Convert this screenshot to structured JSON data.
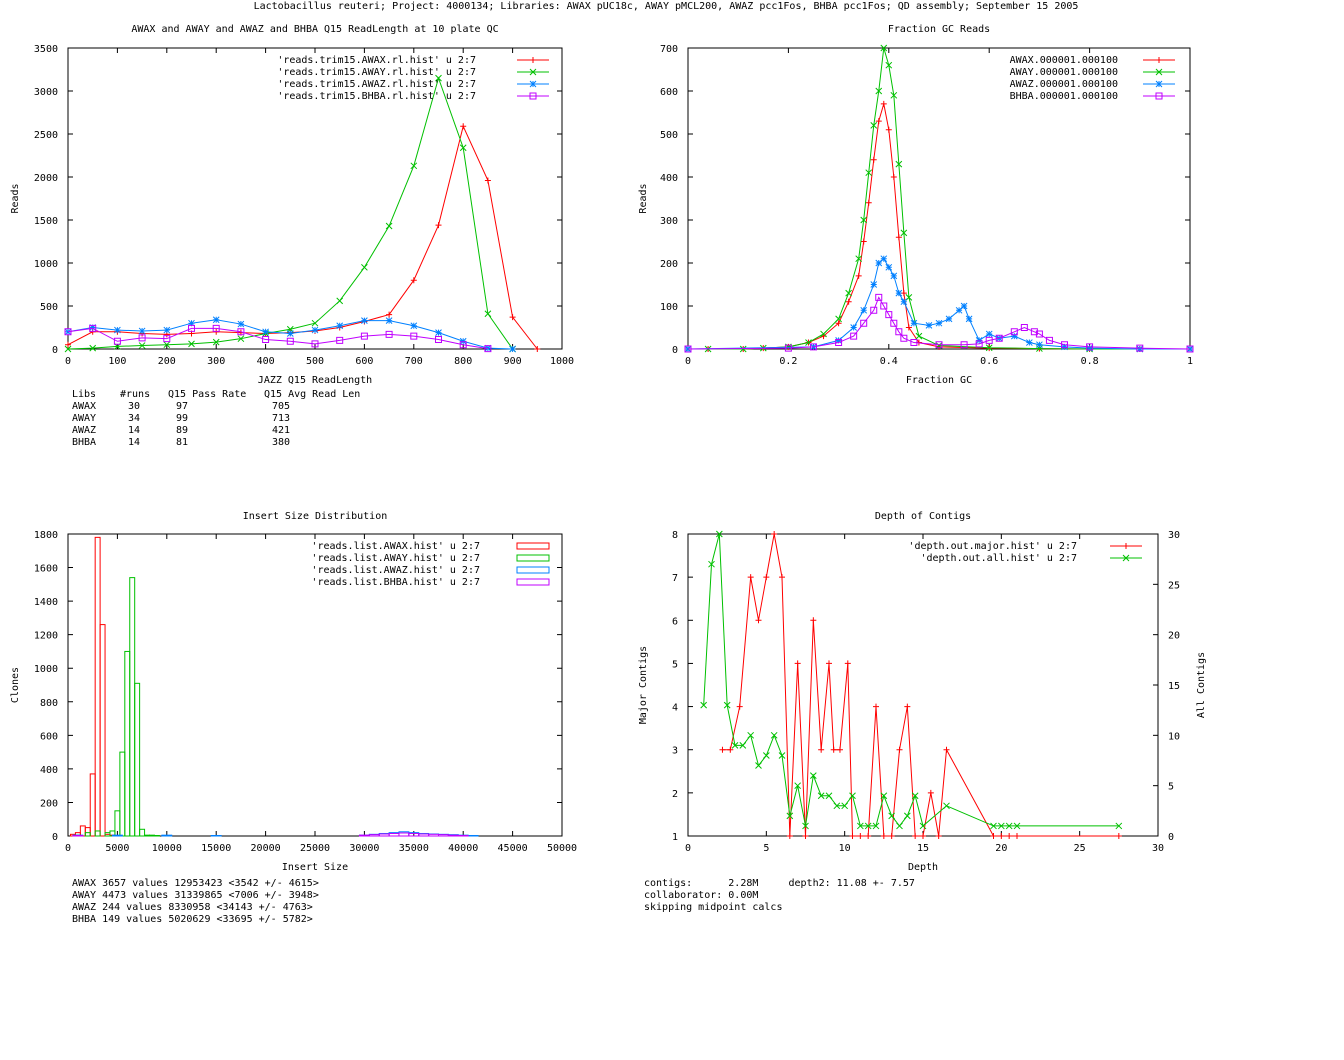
{
  "page_title": "Lactobacillus reuteri; Project: 4000134; Libraries: AWAX pUC18c, AWAY pMCL200, AWAZ pcc1Fos, BHBA pcc1Fos; QD assembly; September 15 2005",
  "colors": {
    "AWAX": "#ff0000",
    "AWAY": "#00c000",
    "AWAZ": "#0080ff",
    "BHBA": "#c000ff",
    "axis": "#000000"
  },
  "chart_data": [
    {
      "id": "readlength",
      "type": "line",
      "title": "AWAX and AWAY and AWAZ and BHBA Q15 ReadLength at 10 plate QC",
      "xlabel": "JAZZ Q15 ReadLength",
      "ylabel": "Reads",
      "xlim": [
        0,
        1000
      ],
      "ylim": [
        0,
        3500
      ],
      "xticks": [
        0,
        100,
        200,
        300,
        400,
        500,
        600,
        700,
        800,
        900,
        1000
      ],
      "yticks": [
        0,
        500,
        1000,
        1500,
        2000,
        2500,
        3000,
        3500
      ],
      "legend_position": "top-right",
      "series": [
        {
          "name": "'reads.trim15.AWAX.rl.hist' u 2:7",
          "color": "#ff0000",
          "marker": "plus",
          "x": [
            0,
            50,
            100,
            150,
            200,
            250,
            300,
            350,
            400,
            450,
            500,
            550,
            600,
            650,
            700,
            750,
            800,
            850,
            900,
            950
          ],
          "y": [
            50,
            200,
            200,
            180,
            170,
            180,
            200,
            190,
            180,
            190,
            210,
            250,
            320,
            400,
            800,
            1440,
            2590,
            1960,
            370,
            0
          ]
        },
        {
          "name": "'reads.trim15.AWAY.rl.hist' u 2:7",
          "color": "#00c000",
          "marker": "x",
          "x": [
            0,
            50,
            100,
            150,
            200,
            250,
            300,
            350,
            400,
            450,
            500,
            550,
            600,
            650,
            700,
            750,
            800,
            850,
            900
          ],
          "y": [
            0,
            10,
            30,
            40,
            50,
            60,
            80,
            120,
            180,
            230,
            300,
            560,
            950,
            1430,
            2130,
            3150,
            2340,
            410,
            0
          ]
        },
        {
          "name": "'reads.trim15.AWAZ.rl.hist' u 2:7",
          "color": "#0080ff",
          "marker": "star",
          "x": [
            0,
            50,
            100,
            150,
            200,
            250,
            300,
            350,
            400,
            450,
            500,
            550,
            600,
            650,
            700,
            750,
            800,
            850,
            900
          ],
          "y": [
            200,
            250,
            220,
            210,
            220,
            300,
            340,
            290,
            200,
            180,
            220,
            270,
            330,
            330,
            270,
            190,
            90,
            10,
            0
          ]
        },
        {
          "name": "'reads.trim15.BHBA.rl.hist' u 2:7",
          "color": "#c000ff",
          "marker": "square",
          "x": [
            0,
            50,
            100,
            150,
            200,
            250,
            300,
            350,
            400,
            450,
            500,
            550,
            600,
            650,
            700,
            750,
            800,
            850
          ],
          "y": [
            200,
            240,
            90,
            130,
            120,
            240,
            240,
            200,
            110,
            90,
            60,
            100,
            150,
            170,
            150,
            110,
            50,
            5
          ]
        }
      ],
      "table": {
        "headers": [
          "Libs",
          "#runs",
          "Q15 Pass Rate",
          "Q15 Avg Read Len"
        ],
        "rows": [
          [
            "AWAX",
            "30",
            "97",
            "705"
          ],
          [
            "AWAY",
            "34",
            "99",
            "713"
          ],
          [
            "AWAZ",
            "14",
            "89",
            "421"
          ],
          [
            "BHBA",
            "14",
            "81",
            "380"
          ]
        ]
      }
    },
    {
      "id": "gc",
      "type": "line",
      "title": "Fraction GC Reads",
      "xlabel": "Fraction GC",
      "ylabel": "Reads",
      "xlim": [
        0,
        1
      ],
      "ylim": [
        0,
        700
      ],
      "xticks": [
        0,
        0.2,
        0.4,
        0.6,
        0.8,
        1
      ],
      "yticks": [
        0,
        100,
        200,
        300,
        400,
        500,
        600,
        700
      ],
      "legend_position": "top-right",
      "series": [
        {
          "name": "AWAX.000001.000100",
          "color": "#ff0000",
          "marker": "plus",
          "x": [
            0,
            0.04,
            0.11,
            0.15,
            0.2,
            0.24,
            0.27,
            0.3,
            0.32,
            0.34,
            0.35,
            0.36,
            0.37,
            0.38,
            0.39,
            0.4,
            0.41,
            0.42,
            0.43,
            0.44,
            0.46,
            0.5,
            0.6,
            0.7,
            0.8,
            0.9,
            1
          ],
          "y": [
            0,
            0,
            0,
            2,
            5,
            15,
            30,
            60,
            110,
            170,
            250,
            340,
            440,
            530,
            570,
            510,
            400,
            260,
            130,
            50,
            15,
            5,
            2,
            1,
            0,
            0,
            0
          ]
        },
        {
          "name": "AWAY.000001.000100",
          "color": "#00c000",
          "marker": "x",
          "x": [
            0,
            0.04,
            0.11,
            0.15,
            0.2,
            0.24,
            0.27,
            0.3,
            0.32,
            0.34,
            0.35,
            0.36,
            0.37,
            0.38,
            0.39,
            0.4,
            0.41,
            0.42,
            0.43,
            0.44,
            0.46,
            0.5,
            0.6,
            0.7,
            0.8,
            0.9,
            1
          ],
          "y": [
            0,
            0,
            0,
            2,
            5,
            15,
            35,
            70,
            130,
            210,
            300,
            410,
            520,
            600,
            700,
            660,
            590,
            430,
            270,
            120,
            30,
            8,
            3,
            1,
            0,
            0,
            0
          ]
        },
        {
          "name": "AWAZ.000001.000100",
          "color": "#0080ff",
          "marker": "star",
          "x": [
            0,
            0.25,
            0.3,
            0.33,
            0.35,
            0.37,
            0.38,
            0.39,
            0.4,
            0.41,
            0.42,
            0.43,
            0.45,
            0.48,
            0.5,
            0.52,
            0.54,
            0.55,
            0.56,
            0.58,
            0.6,
            0.62,
            0.65,
            0.68,
            0.7,
            0.75,
            0.8,
            0.9,
            1
          ],
          "y": [
            0,
            5,
            20,
            50,
            90,
            150,
            200,
            210,
            190,
            170,
            130,
            110,
            60,
            55,
            60,
            70,
            90,
            100,
            70,
            20,
            35,
            25,
            30,
            15,
            10,
            5,
            2,
            0,
            0
          ]
        },
        {
          "name": "BHBA.000001.000100",
          "color": "#c000ff",
          "marker": "square",
          "x": [
            0,
            0.2,
            0.25,
            0.3,
            0.33,
            0.35,
            0.37,
            0.38,
            0.39,
            0.4,
            0.41,
            0.42,
            0.43,
            0.45,
            0.5,
            0.55,
            0.58,
            0.6,
            0.62,
            0.65,
            0.67,
            0.69,
            0.7,
            0.72,
            0.75,
            0.8,
            0.9,
            1
          ],
          "y": [
            0,
            2,
            5,
            15,
            30,
            60,
            90,
            120,
            100,
            80,
            60,
            40,
            25,
            15,
            10,
            10,
            12,
            20,
            25,
            40,
            50,
            40,
            35,
            20,
            10,
            5,
            2,
            0
          ]
        }
      ]
    },
    {
      "id": "insert",
      "type": "bar",
      "title": "Insert Size Distribution",
      "xlabel": "Insert Size",
      "ylabel": "Clones",
      "xlim": [
        0,
        50000
      ],
      "ylim": [
        0,
        1800
      ],
      "xticks": [
        0,
        5000,
        10000,
        15000,
        20000,
        25000,
        30000,
        35000,
        40000,
        45000,
        50000
      ],
      "yticks": [
        0,
        200,
        400,
        600,
        800,
        1000,
        1200,
        1400,
        1600,
        1800
      ],
      "legend_position": "top-right",
      "series": [
        {
          "name": "'reads.list.AWAX.hist' u 2:7",
          "color": "#ff0000",
          "x": [
            500,
            1000,
            1500,
            2000,
            2500,
            3000,
            3500,
            4000,
            4500
          ],
          "y": [
            10,
            20,
            60,
            50,
            370,
            1780,
            1260,
            10,
            5
          ]
        },
        {
          "name": "'reads.list.AWAY.hist' u 2:7",
          "color": "#00c000",
          "x": [
            1000,
            2000,
            3000,
            4000,
            4500,
            5000,
            5500,
            6000,
            6500,
            7000,
            7500,
            8000,
            8500,
            9000
          ],
          "y": [
            5,
            20,
            30,
            20,
            30,
            150,
            500,
            1100,
            1540,
            910,
            40,
            5,
            5,
            3
          ]
        },
        {
          "name": "'reads.list.AWAZ.hist' u 2:7",
          "color": "#0080ff",
          "x": [
            1000,
            5000,
            10000,
            15000,
            30000,
            31000,
            32000,
            33000,
            34000,
            35000,
            36000,
            37000,
            38000,
            39000,
            40000,
            41000
          ],
          "y": [
            5,
            5,
            5,
            3,
            5,
            10,
            15,
            20,
            25,
            20,
            15,
            12,
            10,
            8,
            5,
            3
          ]
        },
        {
          "name": "'reads.list.BHBA.hist' u 2:7",
          "color": "#c000ff",
          "x": [
            1000,
            30000,
            31000,
            32000,
            33000,
            34000,
            35000,
            36000,
            37000,
            38000,
            39000,
            40000
          ],
          "y": [
            3,
            5,
            8,
            12,
            15,
            18,
            15,
            12,
            10,
            8,
            5,
            3
          ]
        }
      ],
      "stats": [
        "AWAX 3657 values 12953423 <3542 +/- 4615>",
        "AWAY 4473 values 31339865 <7006 +/- 3948>",
        "AWAZ 244 values 8330958 <34143 +/- 4763>",
        "BHBA 149 values 5020629 <33695 +/- 5782>"
      ]
    },
    {
      "id": "depth",
      "type": "line",
      "title": "Depth of Contigs",
      "xlabel": "Depth",
      "ylabel": "Major Contigs",
      "y2label": "All Contigs",
      "xlim": [
        0,
        30
      ],
      "ylim": [
        1,
        8
      ],
      "y2lim": [
        0,
        30
      ],
      "xticks": [
        0,
        5,
        10,
        15,
        20,
        25,
        30
      ],
      "yticks": [
        1,
        2,
        3,
        4,
        5,
        6,
        7,
        8
      ],
      "y2ticks": [
        0,
        5,
        10,
        15,
        20,
        25,
        30
      ],
      "legend_position": "top-right",
      "series": [
        {
          "name": "'depth.out.major.hist' u 2:7",
          "color": "#ff0000",
          "marker": "plus",
          "axis": "y1",
          "x": [
            2.2,
            2.7,
            3.3,
            4.0,
            4.5,
            5.0,
            5.5,
            6.0,
            6.5,
            7.0,
            7.5,
            8.0,
            8.5,
            9.0,
            9.3,
            9.7,
            10.2,
            10.5,
            11.0,
            11.5,
            12.0,
            12.5,
            13.0,
            13.5,
            14.0,
            14.5,
            15.0,
            15.5,
            16.0,
            16.5,
            19.5,
            20.0,
            20.5,
            21.0,
            27.5
          ],
          "y": [
            3,
            3,
            4,
            7,
            6,
            7,
            8,
            7,
            1,
            5,
            1,
            6,
            3,
            5,
            3,
            3,
            5,
            1,
            1,
            1,
            4,
            1,
            1,
            3,
            4,
            1,
            1,
            2,
            1,
            3,
            1,
            1,
            1,
            1,
            1
          ]
        },
        {
          "name": "'depth.out.all.hist' u 2:7",
          "color": "#00c000",
          "marker": "x",
          "axis": "y2",
          "x": [
            1.0,
            1.5,
            2.0,
            2.5,
            3.0,
            3.5,
            4.0,
            4.5,
            5.0,
            5.5,
            6.0,
            6.5,
            7.0,
            7.5,
            8.0,
            8.5,
            9.0,
            9.5,
            10.0,
            10.5,
            11.0,
            11.5,
            12.0,
            12.5,
            13.0,
            13.5,
            14.0,
            14.5,
            15.0,
            16.5,
            19.5,
            20.0,
            20.5,
            21.0,
            27.5
          ],
          "y": [
            13,
            27,
            30,
            13,
            9,
            9,
            10,
            7,
            8,
            10,
            8,
            2,
            5,
            1,
            6,
            4,
            4,
            3,
            3,
            4,
            1,
            1,
            1,
            4,
            2,
            1,
            2,
            4,
            1,
            3,
            1,
            1,
            1,
            1,
            1
          ]
        }
      ],
      "stats": [
        "contigs:      2.28M     depth2: 11.08 +- 7.57",
        "collaborator: 0.00M",
        "skipping midpoint calcs"
      ]
    }
  ]
}
